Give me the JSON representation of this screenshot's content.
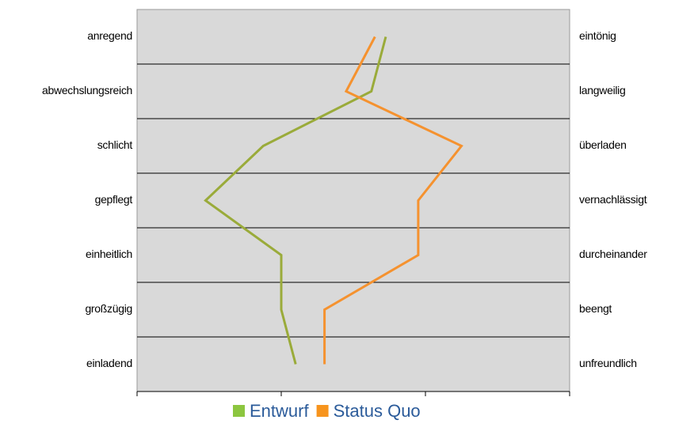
{
  "chart_data": {
    "type": "line",
    "categories": [
      "anregend",
      "abwechslungsreich",
      "schlicht",
      "gepflegt",
      "einheitlich",
      "großzügig",
      "einladend"
    ],
    "right_labels": [
      "eintönig",
      "langweilig",
      "überladen",
      "vernachlässigt",
      "durcheinander",
      "beengt",
      "unfreundlich"
    ],
    "series": [
      {
        "name": "Entwurf",
        "color": "#9aab3a",
        "values": [
          4.45,
          4.25,
          2.75,
          1.95,
          3.0,
          3.0,
          3.2
        ]
      },
      {
        "name": "Status Quo",
        "color": "#f5922f",
        "values": [
          4.3,
          3.9,
          5.5,
          4.9,
          4.9,
          3.6,
          3.6
        ]
      }
    ],
    "xlim": [
      1,
      7
    ],
    "xticks": [
      1,
      3,
      5,
      7
    ],
    "grid": true,
    "legend": "bottom"
  }
}
